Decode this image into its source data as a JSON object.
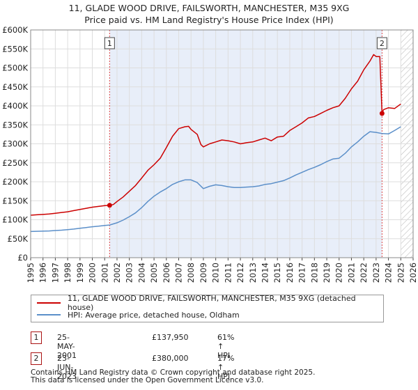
{
  "title_line1": "11, GLADE WOOD DRIVE, FAILSWORTH, MANCHESTER, M35 9XG",
  "title_line2": "Price paid vs. HM Land Registry's House Price Index (HPI)",
  "chart_data": {
    "type": "line",
    "title": "11, GLADE WOOD DRIVE, FAILSWORTH, MANCHESTER, M35 9XG",
    "subtitle": "Price paid vs. HM Land Registry's House Price Index (HPI)",
    "xlim": [
      1995,
      2026
    ],
    "ylim": [
      0,
      600000
    ],
    "x_ticks": [
      1995,
      1996,
      1997,
      1998,
      1999,
      2000,
      2001,
      2002,
      2003,
      2004,
      2005,
      2006,
      2007,
      2008,
      2009,
      2010,
      2011,
      2012,
      2013,
      2014,
      2015,
      2016,
      2017,
      2018,
      2019,
      2020,
      2021,
      2022,
      2023,
      2024,
      2025,
      2026
    ],
    "y_ticks": [
      0,
      50000,
      100000,
      150000,
      200000,
      250000,
      300000,
      350000,
      400000,
      450000,
      500000,
      550000,
      600000
    ],
    "y_tick_labels": [
      "£0",
      "£50K",
      "£100K",
      "£150K",
      "£200K",
      "£250K",
      "£300K",
      "£350K",
      "£400K",
      "£450K",
      "£500K",
      "£550K",
      "£600K"
    ],
    "shaded_region": [
      2001.4,
      2023.48
    ],
    "future_hatch_from": 2025.0,
    "series": [
      {
        "name": "11, GLADE WOOD DRIVE, FAILSWORTH, MANCHESTER, M35 9XG (detached house)",
        "color": "#cc0000",
        "x": [
          1995,
          1995.5,
          1996,
          1996.5,
          1997,
          1997.5,
          1998,
          1998.5,
          1999,
          1999.5,
          2000,
          2000.5,
          2001,
          2001.4,
          2001.7,
          2002,
          2002.5,
          2003,
          2003.5,
          2004,
          2004.5,
          2005,
          2005.5,
          2006,
          2006.5,
          2007,
          2007.5,
          2007.8,
          2008,
          2008.5,
          2008.8,
          2009,
          2009.5,
          2010,
          2010.5,
          2011,
          2011.5,
          2012,
          2012.5,
          2013,
          2013.5,
          2014,
          2014.5,
          2015,
          2015.5,
          2016,
          2016.5,
          2017,
          2017.5,
          2018,
          2018.5,
          2019,
          2019.5,
          2020,
          2020.5,
          2021,
          2021.5,
          2022,
          2022.5,
          2022.8,
          2023,
          2023.3,
          2023.48,
          2023.6,
          2024,
          2024.5,
          2025
        ],
        "y": [
          112000,
          113000,
          114000,
          115000,
          117000,
          119000,
          121000,
          124000,
          127000,
          130000,
          133000,
          135000,
          137000,
          137950,
          140000,
          148000,
          160000,
          175000,
          190000,
          210000,
          230000,
          245000,
          262000,
          290000,
          320000,
          340000,
          345000,
          346000,
          338000,
          325000,
          298000,
          292000,
          300000,
          305000,
          310000,
          308000,
          305000,
          300000,
          303000,
          305000,
          310000,
          315000,
          308000,
          318000,
          320000,
          335000,
          345000,
          355000,
          368000,
          372000,
          380000,
          388000,
          395000,
          400000,
          420000,
          445000,
          465000,
          495000,
          518000,
          535000,
          530000,
          530000,
          380000,
          390000,
          395000,
          393000,
          405000
        ]
      },
      {
        "name": "HPI: Average price, detached house, Oldham",
        "color": "#5b8fc9",
        "x": [
          1995,
          1995.5,
          1996,
          1996.5,
          1997,
          1997.5,
          1998,
          1998.5,
          1999,
          1999.5,
          2000,
          2000.5,
          2001,
          2001.4,
          2002,
          2002.5,
          2003,
          2003.5,
          2004,
          2004.5,
          2005,
          2005.5,
          2006,
          2006.5,
          2007,
          2007.5,
          2008,
          2008.5,
          2009,
          2009.5,
          2010,
          2010.5,
          2011,
          2011.5,
          2012,
          2012.5,
          2013,
          2013.5,
          2014,
          2014.5,
          2015,
          2015.5,
          2016,
          2016.5,
          2017,
          2017.5,
          2018,
          2018.5,
          2019,
          2019.5,
          2020,
          2020.5,
          2021,
          2021.5,
          2022,
          2022.5,
          2023,
          2023.5,
          2024,
          2024.5,
          2025
        ],
        "y": [
          69000,
          69500,
          70000,
          70500,
          71500,
          72500,
          74000,
          75500,
          77500,
          79500,
          81500,
          83000,
          85000,
          86000,
          92000,
          99000,
          108000,
          118000,
          132000,
          148000,
          162000,
          173000,
          182000,
          193000,
          200000,
          205000,
          205000,
          198000,
          182000,
          188000,
          192000,
          190000,
          187000,
          185000,
          185000,
          186000,
          187000,
          189000,
          193000,
          195000,
          199000,
          203000,
          210000,
          218000,
          225000,
          232000,
          238000,
          245000,
          253000,
          260000,
          262000,
          275000,
          292000,
          305000,
          320000,
          332000,
          330000,
          327000,
          326000,
          335000,
          345000
        ]
      }
    ],
    "annotations": [
      {
        "label": "1",
        "x": 2001.4,
        "y": 137950
      },
      {
        "label": "2",
        "x": 2023.48,
        "y": 380000
      }
    ]
  },
  "legend": {
    "items": [
      {
        "label": "11, GLADE WOOD DRIVE, FAILSWORTH, MANCHESTER, M35 9XG (detached house)",
        "color": "#cc0000"
      },
      {
        "label": "HPI: Average price, detached house, Oldham",
        "color": "#5b8fc9"
      }
    ]
  },
  "transactions": [
    {
      "num": "1",
      "date": "25-MAY-2001",
      "price": "£137,950",
      "hpi": "61% ↑ HPI"
    },
    {
      "num": "2",
      "date": "23-JUN-2023",
      "price": "£380,000",
      "hpi": "17% ↑ HPI"
    }
  ],
  "footer_line1": "Contains HM Land Registry data © Crown copyright and database right 2025.",
  "footer_line2": "This data is licensed under the Open Government Licence v3.0."
}
